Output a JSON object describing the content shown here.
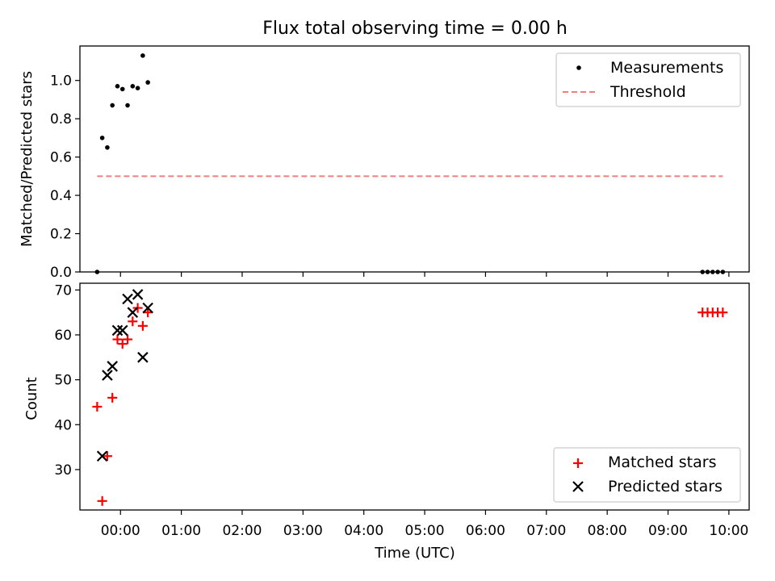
{
  "figure": {
    "title": "Flux total observing time = 0.00 h",
    "xlabel": "Time (UTC)"
  },
  "colors": {
    "measurements": "#000000",
    "threshold": "#f08080",
    "matched": "#ff0000",
    "predicted": "#000000"
  },
  "chart_data": [
    {
      "type": "scatter",
      "title": "Flux total observing time = 0.00 h",
      "ylabel": "Matched/Predicted stars",
      "xlabel": "",
      "xlim": [
        "23:20",
        "10:20"
      ],
      "ylim": [
        0,
        1.18
      ],
      "yticks": [
        0.0,
        0.2,
        0.4,
        0.6,
        0.8,
        1.0
      ],
      "ytick_labels": [
        "0.0",
        "0.2",
        "0.4",
        "0.6",
        "0.8",
        "1.0"
      ],
      "xticks": [
        "00:00",
        "01:00",
        "02:00",
        "03:00",
        "04:00",
        "05:00",
        "06:00",
        "07:00",
        "08:00",
        "09:00",
        "10:00"
      ],
      "legend": "upper right",
      "grid": false,
      "series": [
        {
          "name": "Measurements",
          "marker": "dot",
          "x": [
            "23:37",
            "23:42",
            "23:47",
            "23:52",
            "23:57",
            "00:02",
            "00:07",
            "00:12",
            "00:17",
            "00:22",
            "00:27",
            "09:34",
            "09:39",
            "09:44",
            "09:49",
            "09:54"
          ],
          "y": [
            0.0,
            0.7,
            0.65,
            0.87,
            0.97,
            0.955,
            0.87,
            0.97,
            0.96,
            1.13,
            0.99,
            0.0,
            0.0,
            0.0,
            0.0,
            0.0
          ]
        },
        {
          "name": "Threshold",
          "marker": "dashed-line",
          "x": [
            "23:37",
            "09:54"
          ],
          "y": [
            0.5,
            0.5
          ]
        }
      ]
    },
    {
      "type": "scatter",
      "ylabel": "Count",
      "xlabel": "Time (UTC)",
      "xlim": [
        "23:20",
        "10:20"
      ],
      "ylim": [
        21,
        71.5
      ],
      "yticks": [
        30,
        40,
        50,
        60,
        70
      ],
      "ytick_labels": [
        "30",
        "40",
        "50",
        "60",
        "70"
      ],
      "xticks": [
        "00:00",
        "01:00",
        "02:00",
        "03:00",
        "04:00",
        "05:00",
        "06:00",
        "07:00",
        "08:00",
        "09:00",
        "10:00"
      ],
      "legend": "lower right",
      "grid": false,
      "series": [
        {
          "name": "Matched stars",
          "marker": "plus",
          "x": [
            "23:37",
            "23:42",
            "23:47",
            "23:52",
            "23:57",
            "00:02",
            "00:07",
            "00:12",
            "00:17",
            "00:22",
            "00:27",
            "09:34",
            "09:39",
            "09:44",
            "09:49",
            "09:54"
          ],
          "y": [
            44,
            23,
            33,
            46,
            59,
            58,
            59,
            63,
            66,
            62,
            65,
            65,
            65,
            65,
            65,
            65
          ]
        },
        {
          "name": "Predicted stars",
          "marker": "x",
          "x": [
            "23:42",
            "23:47",
            "23:52",
            "23:57",
            "00:02",
            "00:07",
            "00:12",
            "00:17",
            "00:22",
            "00:27"
          ],
          "y": [
            33,
            51,
            53,
            61,
            61,
            68,
            65,
            69,
            55,
            66
          ]
        }
      ]
    }
  ]
}
